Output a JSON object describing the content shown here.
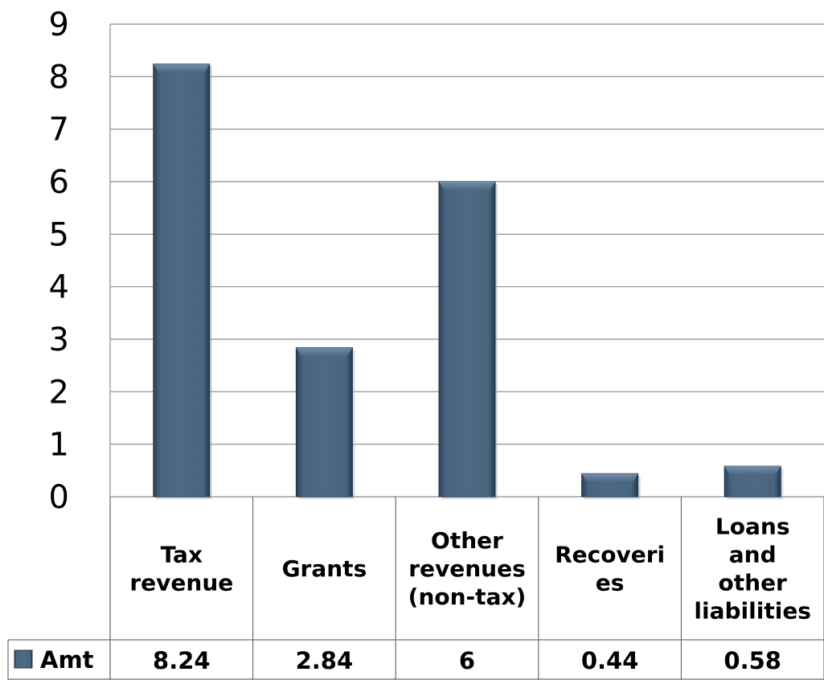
{
  "chart_data": {
    "type": "bar",
    "categories": [
      [
        "Tax",
        "revenue"
      ],
      [
        "Grants"
      ],
      [
        "Other",
        "revenues",
        "(non-tax)"
      ],
      [
        "Recoveri",
        "es"
      ],
      [
        "Loans",
        "and",
        "other",
        "liabilities"
      ]
    ],
    "series": [
      {
        "name": "Amt",
        "values": [
          8.24,
          2.84,
          6,
          0.44,
          0.58
        ],
        "labels": [
          "8.24",
          "2.84",
          "6",
          "0.44",
          "0.58"
        ]
      }
    ],
    "ylim": [
      0,
      9
    ],
    "yticks": [
      "0",
      "1",
      "2",
      "3",
      "4",
      "5",
      "6",
      "7",
      "8",
      "9"
    ],
    "grid": true,
    "data_table": true,
    "bar_color": "#3e5a75"
  }
}
